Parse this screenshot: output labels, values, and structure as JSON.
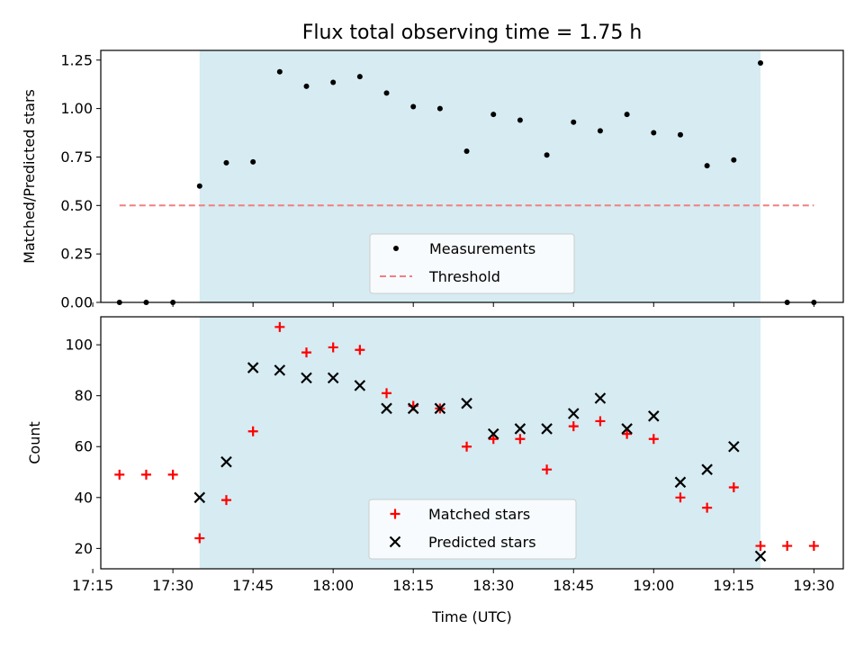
{
  "chart_data": [
    {
      "type": "scatter",
      "title": "Flux total observing time = 1.75 h",
      "xlabel": "",
      "ylabel": "Matched/Predicted stars",
      "ylim": [
        0,
        1.3
      ],
      "yticks": [
        "0.00",
        "0.25",
        "0.50",
        "0.75",
        "1.00",
        "1.25"
      ],
      "shaded_interval": [
        "17:35",
        "19:20"
      ],
      "shaded_color": "#add8e6",
      "legend_position": "lower center",
      "series": [
        {
          "name": "Measurements",
          "marker": "dot",
          "color": "#000000",
          "x": [
            "17:20",
            "17:25",
            "17:30",
            "17:35",
            "17:40",
            "17:45",
            "17:50",
            "17:55",
            "18:00",
            "18:05",
            "18:10",
            "18:15",
            "18:20",
            "18:25",
            "18:30",
            "18:35",
            "18:40",
            "18:45",
            "18:50",
            "18:55",
            "19:00",
            "19:05",
            "19:10",
            "19:15",
            "19:20",
            "19:25",
            "19:30"
          ],
          "y": [
            0,
            0,
            0,
            0.6,
            0.72,
            0.725,
            1.19,
            1.115,
            1.135,
            1.165,
            1.08,
            1.01,
            1.0,
            0.78,
            0.97,
            0.94,
            0.76,
            0.93,
            0.885,
            0.97,
            0.875,
            0.865,
            0.705,
            0.735,
            1.235,
            0,
            0
          ]
        },
        {
          "name": "Threshold",
          "style": "dashed",
          "color": "#f08080",
          "x": [
            "17:20",
            "19:30"
          ],
          "y": [
            0.5,
            0.5
          ]
        }
      ]
    },
    {
      "type": "scatter",
      "title": "",
      "xlabel": "Time (UTC)",
      "ylabel": "Count",
      "ylim": [
        12,
        111
      ],
      "yticks": [
        "20",
        "40",
        "60",
        "80",
        "100"
      ],
      "xticks": [
        "17:15",
        "17:30",
        "17:45",
        "18:00",
        "18:15",
        "18:30",
        "18:45",
        "19:00",
        "19:15",
        "19:30"
      ],
      "shaded_interval": [
        "17:35",
        "19:20"
      ],
      "shaded_color": "#add8e6",
      "legend_position": "lower center",
      "series": [
        {
          "name": "Matched stars",
          "marker": "plus",
          "color": "#ff0000",
          "x": [
            "17:20",
            "17:25",
            "17:30",
            "17:35",
            "17:40",
            "17:45",
            "17:50",
            "17:55",
            "18:00",
            "18:05",
            "18:10",
            "18:15",
            "18:20",
            "18:25",
            "18:30",
            "18:35",
            "18:40",
            "18:45",
            "18:50",
            "18:55",
            "19:00",
            "19:05",
            "19:10",
            "19:15",
            "19:20",
            "19:25",
            "19:30"
          ],
          "y": [
            49,
            49,
            49,
            24,
            39,
            66,
            107,
            97,
            99,
            98,
            81,
            76,
            75,
            60,
            63,
            63,
            51,
            68,
            70,
            65,
            63,
            40,
            36,
            44,
            21,
            21,
            21
          ]
        },
        {
          "name": "Predicted stars",
          "marker": "x",
          "color": "#000000",
          "x": [
            "17:35",
            "17:40",
            "17:45",
            "17:50",
            "17:55",
            "18:00",
            "18:05",
            "18:10",
            "18:15",
            "18:20",
            "18:25",
            "18:30",
            "18:35",
            "18:40",
            "18:45",
            "18:50",
            "18:55",
            "19:00",
            "19:05",
            "19:10",
            "19:15",
            "19:20"
          ],
          "y": [
            40,
            54,
            91,
            90,
            87,
            87,
            84,
            75,
            75,
            75,
            77,
            65,
            67,
            67,
            73,
            79,
            67,
            72,
            46,
            51,
            60,
            17
          ]
        }
      ]
    }
  ]
}
